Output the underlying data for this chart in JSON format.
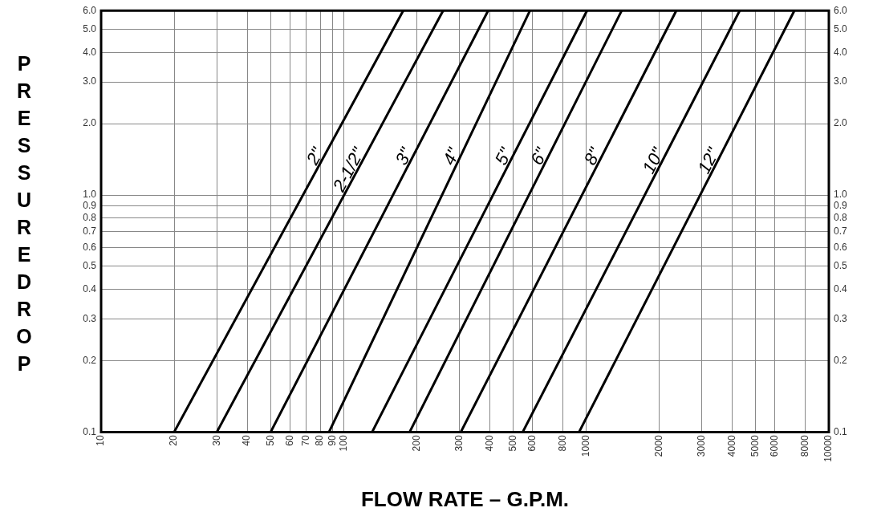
{
  "chart_data": {
    "type": "line",
    "xlabel": "FLOW RATE – G.P.M.",
    "ylabel": "PRESSURE DROP",
    "log": "xy",
    "xlim": [
      10,
      10000
    ],
    "xticks": [
      10,
      20,
      30,
      40,
      50,
      60,
      70,
      80,
      90,
      100,
      200,
      300,
      400,
      500,
      600,
      800,
      1000,
      2000,
      3000,
      4000,
      5000,
      6000,
      8000,
      10000
    ],
    "ylim": [
      0.1,
      6
    ],
    "yticks": [
      {
        "value": 0.1,
        "label": "0.1"
      },
      {
        "value": 0.2,
        "label": "0.2"
      },
      {
        "value": 0.3,
        "label": "0.3"
      },
      {
        "value": 0.4,
        "label": "0.4"
      },
      {
        "value": 0.5,
        "label": "0.5"
      },
      {
        "value": 0.6,
        "label": "0.6"
      },
      {
        "value": 0.7,
        "label": "0.7"
      },
      {
        "value": 0.8,
        "label": "0.8"
      },
      {
        "value": 0.9,
        "label": "0.9"
      },
      {
        "value": 1,
        "label": "1.0"
      },
      {
        "value": 2,
        "label": "2.0"
      },
      {
        "value": 3,
        "label": "3.0"
      },
      {
        "value": 4,
        "label": "4.0"
      },
      {
        "value": 5,
        "label": "5.0"
      },
      {
        "value": 6,
        "label": "6.0"
      }
    ],
    "grid": true,
    "legend": false,
    "marker": "none",
    "line_style": "solid",
    "series": [
      {
        "name": "2\"",
        "color": "#000000",
        "x": [
          20,
          176
        ],
        "values": [
          0.1,
          6
        ]
      },
      {
        "name": "2-1/2\"",
        "color": "#000000",
        "x": [
          30,
          257
        ],
        "values": [
          0.1,
          6
        ]
      },
      {
        "name": "3\"",
        "color": "#000000",
        "x": [
          50,
          394
        ],
        "values": [
          0.1,
          6
        ]
      },
      {
        "name": "4\"",
        "color": "#000000",
        "x": [
          87,
          586
        ],
        "values": [
          0.1,
          6
        ]
      },
      {
        "name": "5\"",
        "color": "#000000",
        "x": [
          131,
          1007
        ],
        "values": [
          0.1,
          6
        ]
      },
      {
        "name": "6\"",
        "color": "#000000",
        "x": [
          187,
          1400
        ],
        "values": [
          0.1,
          6
        ]
      },
      {
        "name": "8\"",
        "color": "#000000",
        "x": [
          304,
          2350
        ],
        "values": [
          0.1,
          6
        ]
      },
      {
        "name": "10\"",
        "color": "#000000",
        "x": [
          547,
          4290
        ],
        "values": [
          0.1,
          6
        ]
      },
      {
        "name": "12\"",
        "color": "#000000",
        "x": [
          934,
          7210
        ],
        "values": [
          0.1,
          6
        ]
      }
    ]
  }
}
